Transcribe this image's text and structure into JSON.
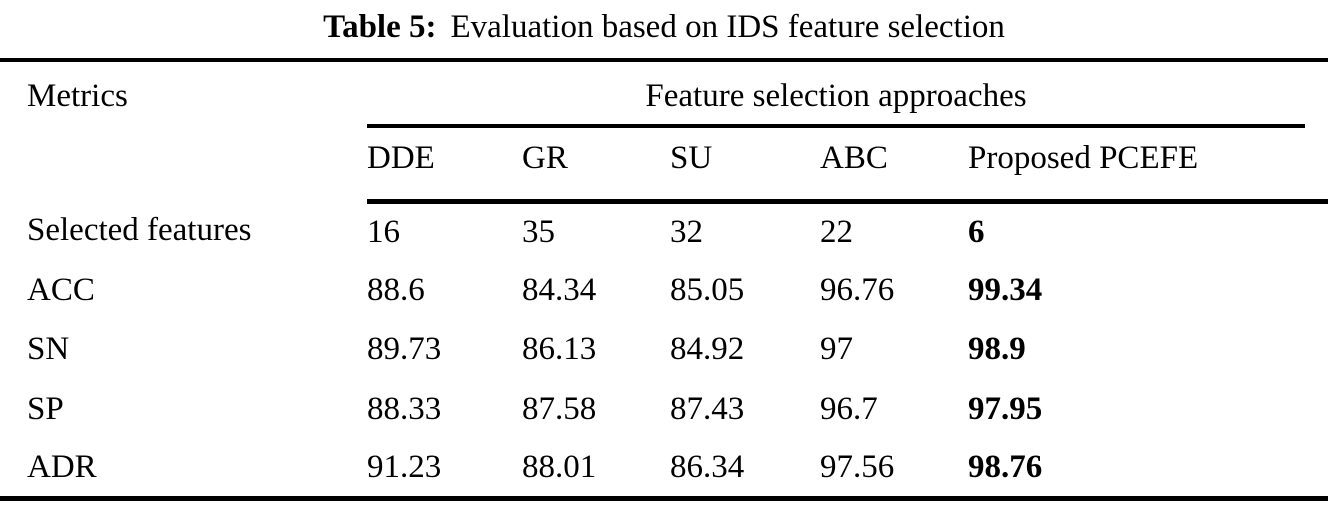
{
  "title": {
    "prefix": "Table 5:",
    "text": "Evaluation based on IDS feature selection"
  },
  "table": {
    "metrics_header": "Metrics",
    "group_header": "Feature selection approaches",
    "columns": [
      "DDE",
      "GR",
      "SU",
      "ABC",
      "Proposed PCEFE"
    ],
    "rows": [
      {
        "metric": "Selected features",
        "values": [
          "16",
          "35",
          "32",
          "22",
          "6"
        ]
      },
      {
        "metric": "ACC",
        "values": [
          "88.6",
          "84.34",
          "85.05",
          "96.76",
          "99.34"
        ]
      },
      {
        "metric": "SN",
        "values": [
          "89.73",
          "86.13",
          "84.92",
          "97",
          "98.9"
        ]
      },
      {
        "metric": "SP",
        "values": [
          "88.33",
          "87.58",
          "87.43",
          "96.7",
          "97.95"
        ]
      },
      {
        "metric": "ADR",
        "values": [
          "91.23",
          "88.01",
          "86.34",
          "97.56",
          "98.76"
        ]
      }
    ]
  },
  "colors": {
    "text": "#000000",
    "background": "#ffffff"
  }
}
